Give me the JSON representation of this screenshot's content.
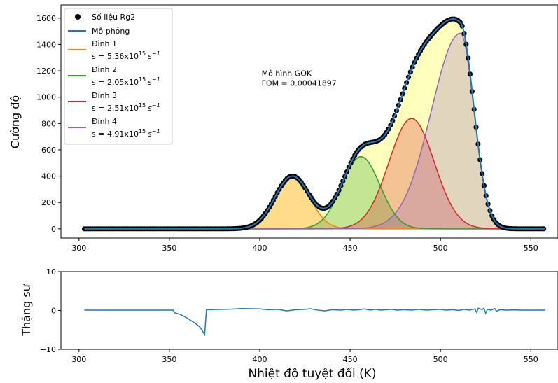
{
  "colors": {
    "data_marker": "#000000",
    "simulation": "#1f77b4",
    "peak1": "#ff7f0e",
    "peak2": "#2ca02c",
    "peak3": "#d62728",
    "peak4": "#9467bd",
    "sum_fill": "#ffff99"
  },
  "chart_data": [
    {
      "type": "line",
      "xlabel": "",
      "ylabel": "Cường độ",
      "xlim": [
        290,
        565
      ],
      "ylim": [
        -70,
        1700
      ],
      "xticks": [
        300,
        350,
        400,
        450,
        500,
        550
      ],
      "yticks": [
        0,
        200,
        400,
        600,
        800,
        1000,
        1200,
        1400,
        1600
      ],
      "grid": false,
      "legend_position": "top-left",
      "legend": [
        {
          "label": "Số liệu Rg2",
          "kind": "marker",
          "color_key": "data_marker"
        },
        {
          "label": "Mô phỏng",
          "kind": "line",
          "color_key": "simulation"
        },
        {
          "label": "Đỉnh 1",
          "s_mant": "s = 5.36x10",
          "s_exp": "15",
          "s_unit": "s",
          "s_unit_exp": "−1",
          "kind": "line",
          "color_key": "peak1"
        },
        {
          "label": "Đỉnh 2",
          "s_mant": "s = 2.05x10",
          "s_exp": "15",
          "s_unit": "s",
          "s_unit_exp": "−1",
          "kind": "line",
          "color_key": "peak2"
        },
        {
          "label": "Đỉnh 3",
          "s_mant": "s = 2.51x10",
          "s_exp": "15",
          "s_unit": "s",
          "s_unit_exp": "−1",
          "kind": "line",
          "color_key": "peak3"
        },
        {
          "label": "Đỉnh 4",
          "s_mant": "s = 4.91x10",
          "s_exp": "15",
          "s_unit": "s",
          "s_unit_exp": "−1",
          "kind": "line",
          "color_key": "peak4"
        }
      ],
      "annotation": {
        "line1": "Mô hình GOK",
        "line2": "FOM = 0.00041897",
        "x": 401,
        "y": 1160
      },
      "peaks": [
        {
          "name": "Đỉnh 1",
          "center": 418,
          "amplitude": 400,
          "width": 9.5,
          "color_key": "peak1"
        },
        {
          "name": "Đỉnh 2",
          "center": 456,
          "amplitude": 548,
          "width": 10.5,
          "color_key": "peak2"
        },
        {
          "name": "Đỉnh 3",
          "center": 484,
          "amplitude": 838,
          "width": 12.5,
          "color_key": "peak3"
        },
        {
          "name": "Đỉnh 4",
          "center": 511,
          "amplitude": 1485,
          "width_left": 16,
          "width_right": 7.5,
          "color_key": "peak4"
        }
      ],
      "series": [
        {
          "name": "Số liệu Rg2",
          "x_start": 303,
          "x_end": 558,
          "x_step": 1.1,
          "marker": "circle"
        },
        {
          "name": "Mô phỏng",
          "x_start": 303,
          "x_end": 558
        }
      ]
    },
    {
      "type": "line",
      "xlabel": "Nhiệt độ tuyệt đối (K)",
      "ylabel": "Thặng sư",
      "xlim": [
        290,
        565
      ],
      "ylim": [
        -10,
        10
      ],
      "xticks": [
        300,
        350,
        400,
        450,
        500,
        550
      ],
      "yticks": [
        -10,
        0,
        10
      ],
      "ytick_labels": [
        "−10",
        "0",
        "10"
      ],
      "grid": false,
      "series": [
        {
          "name": "Thặng sư",
          "points": [
            [
              303,
              0.1
            ],
            [
              320,
              0.1
            ],
            [
              340,
              0.1
            ],
            [
              352,
              0.1
            ],
            [
              353,
              -0.6
            ],
            [
              356,
              -1.0
            ],
            [
              360,
              -2.0
            ],
            [
              364,
              -3.2
            ],
            [
              367,
              -4.3
            ],
            [
              369.5,
              -6.2
            ],
            [
              370.5,
              0.2
            ],
            [
              375,
              0.25
            ],
            [
              380,
              0.3
            ],
            [
              385,
              0.35
            ],
            [
              390,
              0.5
            ],
            [
              395,
              0.45
            ],
            [
              400,
              0.4
            ],
            [
              405,
              0.2
            ],
            [
              410,
              0.3
            ],
            [
              415,
              -0.1
            ],
            [
              420,
              0.2
            ],
            [
              425,
              0.3
            ],
            [
              428,
              0.45
            ],
            [
              432,
              0.1
            ],
            [
              436,
              -0.1
            ],
            [
              440,
              0.2
            ],
            [
              445,
              0.1
            ],
            [
              448,
              0.3
            ],
            [
              452,
              0.1
            ],
            [
              455,
              0.2
            ],
            [
              458,
              0.4
            ],
            [
              461,
              0.1
            ],
            [
              464,
              0.3
            ],
            [
              467,
              0.1
            ],
            [
              470,
              0.2
            ],
            [
              473,
              0.3
            ],
            [
              476,
              0.1
            ],
            [
              480,
              0.2
            ],
            [
              484,
              0.1
            ],
            [
              488,
              0.3
            ],
            [
              492,
              0.1
            ],
            [
              496,
              0.2
            ],
            [
              500,
              0.3
            ],
            [
              503,
              0.1
            ],
            [
              507,
              0.2
            ],
            [
              510,
              0.0
            ],
            [
              513,
              0.3
            ],
            [
              516,
              0.1
            ],
            [
              519,
              0.4
            ],
            [
              520,
              -0.5
            ],
            [
              521,
              0.6
            ],
            [
              523,
              0.2
            ],
            [
              524,
              0.6
            ],
            [
              525,
              -0.7
            ],
            [
              526,
              0.3
            ],
            [
              528,
              0.1
            ],
            [
              530,
              0.5
            ],
            [
              531,
              -0.2
            ],
            [
              533,
              0.2
            ],
            [
              536,
              0.1
            ],
            [
              540,
              0.15
            ],
            [
              545,
              0.1
            ],
            [
              550,
              0.1
            ],
            [
              558,
              0.1
            ]
          ]
        }
      ]
    }
  ]
}
